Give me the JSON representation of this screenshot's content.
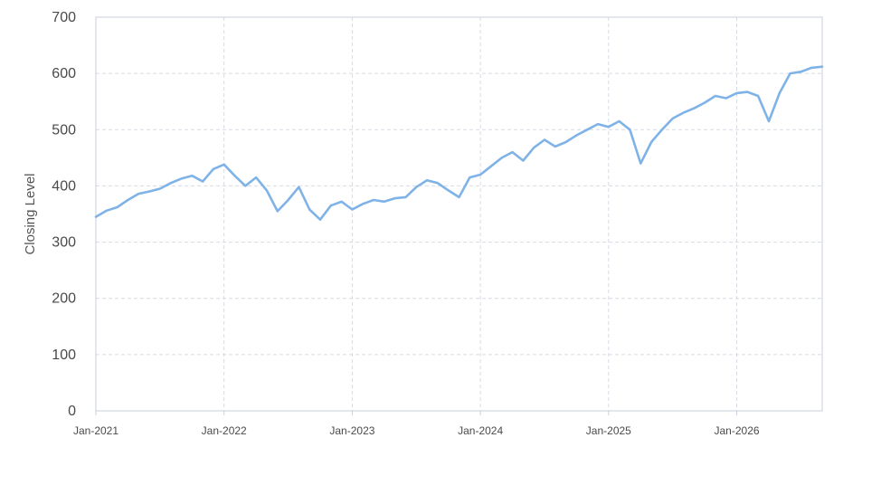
{
  "chart_data": {
    "type": "line",
    "title": "",
    "xlabel": "",
    "ylabel": "Closing Level",
    "ylim": [
      0,
      700
    ],
    "xlim": [
      "2021-01",
      "2026-09"
    ],
    "y_ticks": [
      "0",
      "100",
      "200",
      "300",
      "400",
      "500",
      "600",
      "700"
    ],
    "x_ticks": [
      "Jan-2021",
      "Jan-2022",
      "Jan-2023",
      "Jan-2024",
      "Jan-2025",
      "Jan-2026"
    ],
    "grid": true,
    "line_color": "#7fb3e8",
    "series": [
      {
        "x": [
          "2021-01",
          "2021-02",
          "2021-03",
          "2021-04",
          "2021-05",
          "2021-06",
          "2021-07",
          "2021-08",
          "2021-09",
          "2021-10",
          "2021-11",
          "2021-12",
          "2022-01",
          "2022-02",
          "2022-03",
          "2022-04",
          "2022-05",
          "2022-06",
          "2022-07",
          "2022-08",
          "2022-09",
          "2022-10",
          "2022-11",
          "2022-12",
          "2023-01",
          "2023-02",
          "2023-03",
          "2023-04",
          "2023-05",
          "2023-06",
          "2023-07",
          "2023-08",
          "2023-09",
          "2023-10",
          "2023-11",
          "2023-12",
          "2024-01",
          "2024-02",
          "2024-03",
          "2024-04",
          "2024-05",
          "2024-06",
          "2024-07",
          "2024-08",
          "2024-09",
          "2024-10",
          "2024-11",
          "2024-12",
          "2025-01",
          "2025-02",
          "2025-03",
          "2025-04",
          "2025-05",
          "2025-06",
          "2025-07",
          "2025-08",
          "2025-09",
          "2025-10",
          "2025-11",
          "2025-12",
          "2026-01",
          "2026-02",
          "2026-03",
          "2026-04",
          "2026-05",
          "2026-06",
          "2026-07",
          "2026-08",
          "2026-09"
        ],
        "values": [
          345,
          356,
          362,
          375,
          386,
          390,
          395,
          405,
          413,
          418,
          408,
          430,
          438,
          418,
          400,
          415,
          392,
          355,
          375,
          398,
          358,
          340,
          365,
          372,
          358,
          368,
          375,
          372,
          378,
          380,
          398,
          410,
          405,
          392,
          380,
          415,
          420,
          435,
          450,
          460,
          445,
          468,
          482,
          470,
          478,
          490,
          500,
          510,
          505,
          515,
          500,
          440,
          478,
          500,
          520,
          530,
          538,
          548,
          560,
          556,
          565,
          567,
          560,
          515,
          565,
          600,
          603,
          610,
          612
        ]
      }
    ]
  }
}
